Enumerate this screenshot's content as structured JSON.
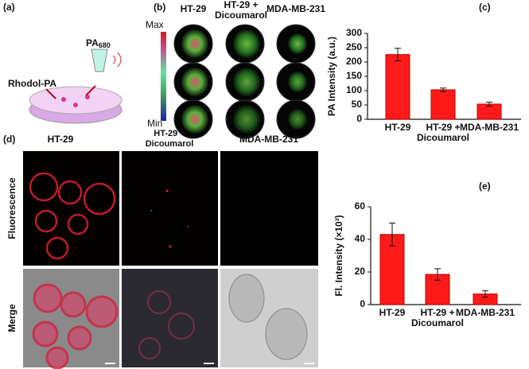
{
  "panels": {
    "a": {
      "label": "(a)",
      "probe": "Rhodol-PA",
      "signal": {
        "main": "PA",
        "sub": "680"
      }
    },
    "b": {
      "label": "(b)",
      "colorbar_max": "Max",
      "colorbar_min": "Min",
      "columns": [
        "HT-29",
        "HT-29 + Dicoumarol",
        "MDA-MB-231"
      ]
    },
    "c": {
      "label": "(c)"
    },
    "d": {
      "label": "(d)",
      "columns": [
        "HT-29",
        "HT-29 + Dicoumarol",
        "MDA-MB-231"
      ],
      "rows": [
        "Fluorescence",
        "Merge"
      ]
    },
    "e": {
      "label": "(e)"
    }
  },
  "chart_data": [
    {
      "type": "bar",
      "ylabel": "PA Intensity (a.u.)",
      "categories": [
        "HT-29",
        "HT-29 + Dicoumarol",
        "MDA-MB-231"
      ],
      "values": [
        226,
        103,
        53
      ],
      "errors": [
        22,
        6,
        7
      ],
      "color": "#ff1a1a",
      "ylim": [
        0,
        300
      ],
      "yticks": [
        0,
        50,
        100,
        150,
        200,
        250,
        300
      ]
    },
    {
      "type": "bar",
      "ylabel": "Fl. Intensity (×10³)",
      "categories": [
        "HT-29",
        "HT-29 + Dicoumarol",
        "MDA-MB-231"
      ],
      "values": [
        43,
        18.5,
        6.5
      ],
      "errors": [
        7,
        3.5,
        2
      ],
      "color": "#ff1a1a",
      "ylim": [
        0,
        60
      ],
      "yticks": [
        0,
        20,
        40,
        60
      ]
    }
  ]
}
